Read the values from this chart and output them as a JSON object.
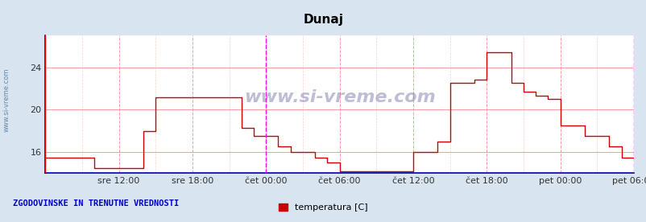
{
  "title": "Dunaj",
  "title_fontsize": 11,
  "bg_color": "#d8e4f0",
  "plot_bg_color": "#ffffff",
  "line_color": "#cc0000",
  "grid_color_major": "#ff9999",
  "grid_color_minor": "#ffcccc",
  "ylabel_left": "",
  "xlabel": "",
  "x_tick_labels": [
    "sre 12:00",
    "sre 18:00",
    "čet 00:00",
    "čet 06:00",
    "čet 12:00",
    "čet 18:00",
    "pet 00:00",
    "pet 06:00"
  ],
  "yticks": [
    16,
    20,
    24
  ],
  "ylim": [
    14,
    27
  ],
  "xlim": [
    0,
    576
  ],
  "watermark": "www.si-vreme.com",
  "legend_label": "temperatura [C]",
  "legend_color": "#cc0000",
  "footer_text": "ZGODOVINSKE IN TRENUTNE VREDNOSTI",
  "magenta_vline_x": 216,
  "magenta_vline2_x": 576,
  "time_points": [
    0,
    12,
    24,
    36,
    48,
    60,
    72,
    84,
    96,
    108,
    120,
    132,
    144,
    156,
    168,
    180,
    192,
    204,
    216,
    228,
    240,
    252,
    264,
    276,
    288,
    300,
    312,
    324,
    336,
    348,
    360,
    372,
    384,
    396,
    408,
    420,
    432,
    444,
    456,
    468,
    480,
    492,
    504,
    516,
    528,
    540,
    552,
    564,
    576
  ],
  "temp_values": [
    15.5,
    15.5,
    15.5,
    15.5,
    14.5,
    14.5,
    14.5,
    14.5,
    18.0,
    21.2,
    21.2,
    21.2,
    21.2,
    21.2,
    21.2,
    21.2,
    18.3,
    17.5,
    17.5,
    16.5,
    16.0,
    16.0,
    15.5,
    15.0,
    14.2,
    14.2,
    14.2,
    14.2,
    14.2,
    14.2,
    16.0,
    16.0,
    17.0,
    22.5,
    22.5,
    22.8,
    25.4,
    25.4,
    22.5,
    21.7,
    21.3,
    21.0,
    18.5,
    18.5,
    17.5,
    17.5,
    16.5,
    15.5,
    15.5
  ]
}
